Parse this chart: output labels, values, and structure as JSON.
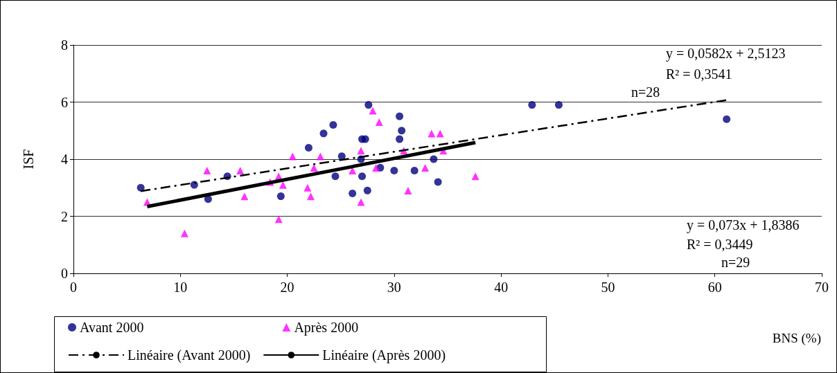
{
  "chart_data": {
    "type": "scatter",
    "xlabel": "BNS (%)",
    "ylabel": "ISF",
    "xlim": [
      0,
      70
    ],
    "xticks": [
      0,
      10,
      20,
      30,
      40,
      50,
      60,
      70
    ],
    "ylim": [
      0,
      8
    ],
    "yticks": [
      0,
      2,
      4,
      6,
      8
    ],
    "grid": "y",
    "legend": "bottom",
    "annotations": [
      "y = 0,0582x + 2,5123",
      "R² = 0,3541",
      "n=28",
      "y = 0,073x + 1,8386",
      "R² = 0,3449",
      "n=29"
    ],
    "series": [
      {
        "name": "Avant 2000",
        "marker": "circle",
        "color": "#000080",
        "x": [
          6.3,
          11.3,
          12.6,
          14.4,
          19.4,
          22.0,
          23.4,
          24.3,
          24.5,
          25.1,
          26.1,
          27.0,
          27.3,
          27.0,
          26.9,
          27.5,
          27.6,
          28.7,
          30.0,
          30.5,
          30.7,
          30.5,
          31.9,
          33.7,
          34.1,
          42.9,
          45.4,
          61.1
        ],
        "values": [
          3.0,
          3.1,
          2.6,
          3.4,
          2.7,
          4.4,
          4.9,
          5.2,
          3.4,
          4.1,
          2.8,
          4.7,
          4.7,
          3.4,
          4.0,
          2.9,
          5.9,
          3.7,
          3.6,
          5.5,
          5.0,
          4.7,
          3.6,
          4.0,
          3.2,
          5.9,
          5.9,
          5.4
        ]
      },
      {
        "name": "Après 2000",
        "marker": "triangle",
        "color": "#ff00ff",
        "x": [
          6.9,
          10.4,
          12.5,
          15.6,
          16.0,
          18.4,
          19.2,
          19.2,
          19.6,
          20.5,
          21.9,
          22.2,
          22.5,
          23.1,
          26.1,
          26.9,
          26.9,
          28.0,
          28.3,
          28.6,
          30.9,
          31.3,
          32.9,
          33.5,
          34.3,
          34.6,
          37.6
        ],
        "values": [
          2.5,
          1.4,
          3.6,
          3.6,
          2.7,
          3.2,
          3.4,
          1.9,
          3.1,
          4.1,
          3.0,
          2.7,
          3.7,
          4.1,
          3.6,
          4.3,
          2.5,
          5.7,
          3.7,
          5.3,
          4.3,
          2.9,
          3.7,
          4.9,
          4.9,
          4.3,
          3.4
        ]
      },
      {
        "name": "Linéaire (Avant 2000)",
        "type": "line",
        "marker": "none",
        "line_style": "dashed",
        "color": "#000000",
        "x": [
          6.3,
          61.1
        ],
        "values": [
          2.88,
          6.07
        ]
      },
      {
        "name": "Linéaire (Après 2000)",
        "type": "line",
        "marker": "none",
        "line_style": "solid",
        "color": "#000000",
        "x": [
          6.9,
          37.6
        ],
        "values": [
          2.34,
          4.58
        ]
      }
    ]
  }
}
